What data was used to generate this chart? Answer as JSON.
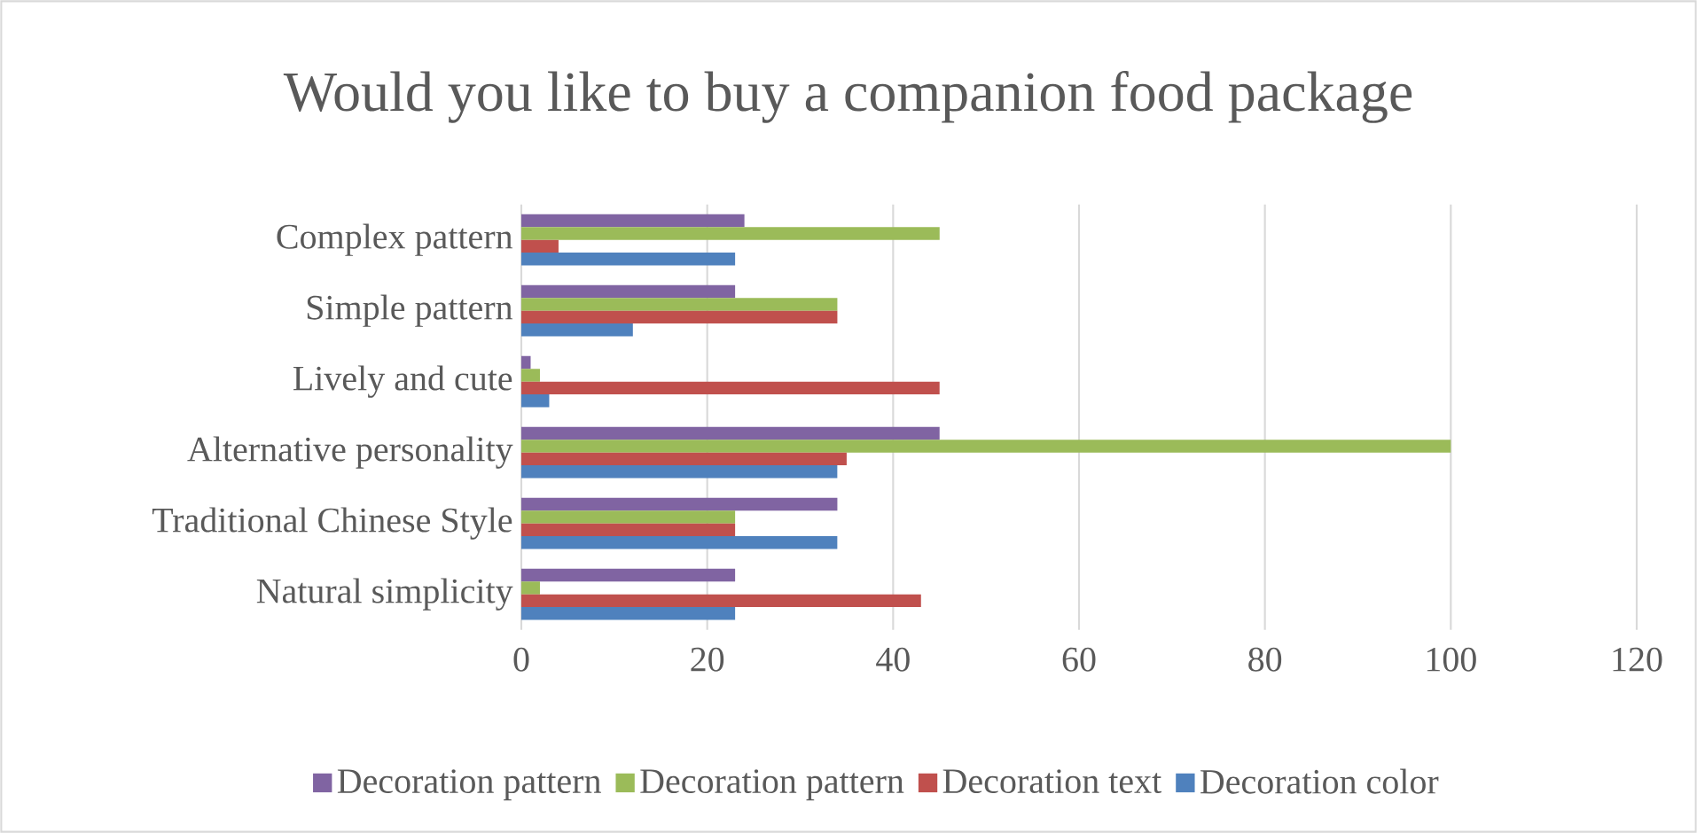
{
  "chart_data": {
    "type": "bar",
    "orientation": "horizontal",
    "title": "Would you like to buy a companion food package",
    "categories": [
      "Complex pattern",
      "Simple pattern",
      "Lively and cute",
      "Alternative personality",
      "Traditional Chinese Style",
      "Natural simplicity"
    ],
    "series": [
      {
        "name": "Decoration pattern",
        "color": "#8064a2",
        "values": [
          24,
          23,
          1,
          45,
          34,
          23
        ]
      },
      {
        "name": "Decoration pattern",
        "color": "#9bbb59",
        "values": [
          45,
          34,
          2,
          100,
          23,
          2
        ]
      },
      {
        "name": "Decoration text",
        "color": "#c0504d",
        "values": [
          4,
          34,
          45,
          35,
          23,
          43
        ]
      },
      {
        "name": "Decoration color",
        "color": "#4f81bd",
        "values": [
          23,
          12,
          3,
          34,
          34,
          23
        ]
      }
    ],
    "xlim": [
      0,
      120
    ],
    "xticks": [
      0,
      20,
      40,
      60,
      80,
      100,
      120
    ],
    "grid": "x",
    "legend": "bottom"
  }
}
